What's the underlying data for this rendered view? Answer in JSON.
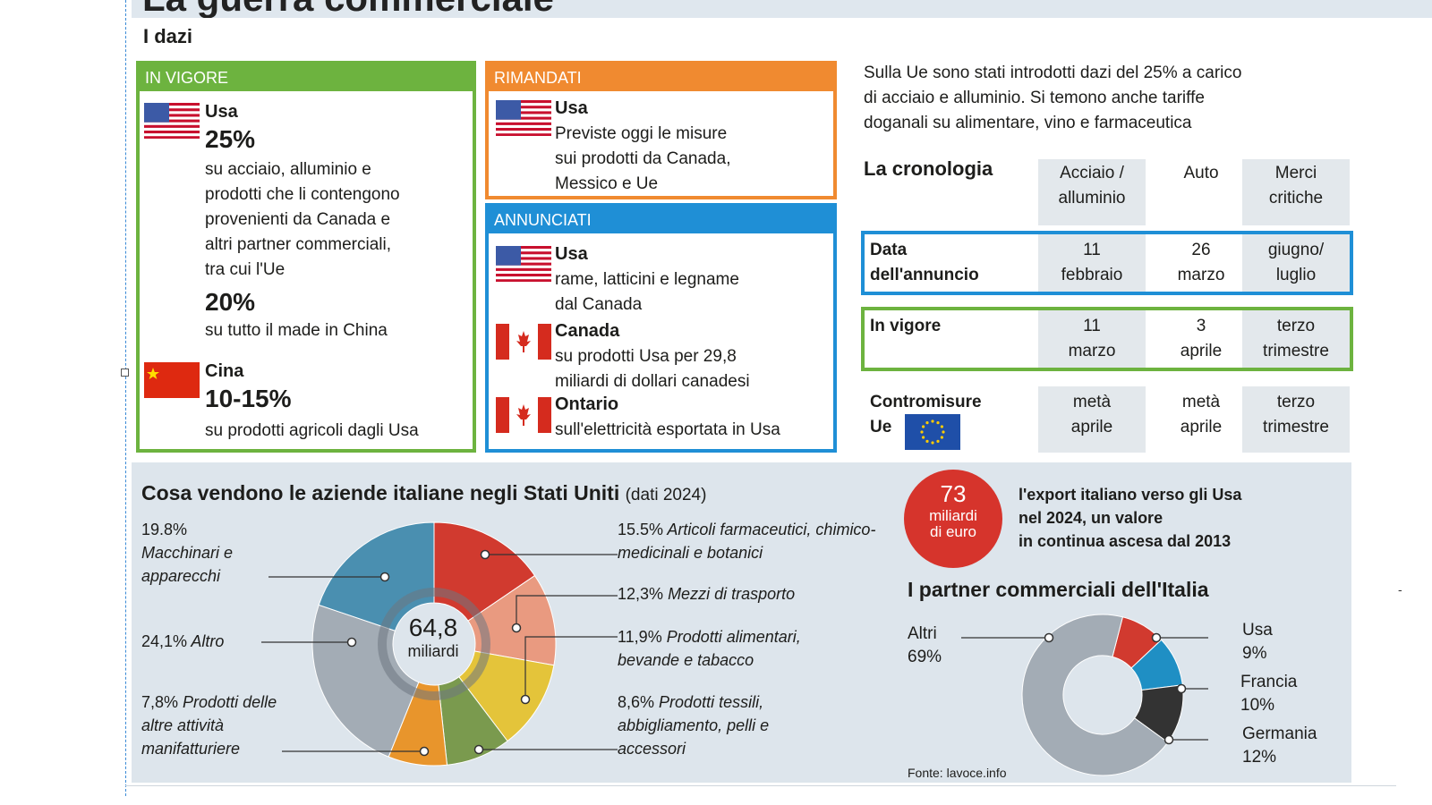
{
  "page": {
    "title": "La guerra commerciale",
    "section": "I dazi"
  },
  "colors": {
    "in_vigore": "#6db33f",
    "rimandati": "#f08a30",
    "annunciati": "#1f8fd6",
    "panel_bg": "#dde5ec",
    "badge": "#d6342c"
  },
  "in_vigore": {
    "header": "IN VIGORE",
    "usa_country": "Usa",
    "usa_rate1": "25%",
    "usa_text1": [
      "su acciaio, alluminio e",
      "prodotti che li contengono",
      "provenienti da Canada e",
      "altri partner commerciali,",
      "tra cui l'Ue"
    ],
    "usa_rate2": "20%",
    "usa_text2": "su tutto il made in China",
    "cina_country": "Cina",
    "cina_rate": "10-15%",
    "cina_text": "su prodotti agricoli dagli Usa"
  },
  "rimandati": {
    "header": "RIMANDATI",
    "country": "Usa",
    "text": [
      "Previste oggi le misure",
      "sui prodotti da Canada,",
      "Messico e Ue"
    ]
  },
  "annunciati": {
    "header": "ANNUNCIATI",
    "usa_country": "Usa",
    "usa_text": [
      "rame, latticini e legname",
      "dal Canada"
    ],
    "canada_country": "Canada",
    "canada_text": [
      "su prodotti Usa per 29,8",
      "miliardi di dollari canadesi"
    ],
    "ontario_country": "Ontario",
    "ontario_text": "sull'elettricità esportata in Usa"
  },
  "intro": [
    "Sulla Ue sono stati introdotti dazi del 25% a carico",
    "di acciaio e alluminio. Si temono anche tariffe",
    "doganali su alimentare, vino e farmaceutica"
  ],
  "cronologia": {
    "title": "La cronologia",
    "columns": [
      [
        "Acciaio /",
        "alluminio"
      ],
      [
        "Auto"
      ],
      [
        "Merci",
        "critiche"
      ]
    ],
    "rows": [
      {
        "label": [
          "Data",
          "dell'annuncio"
        ],
        "cells": [
          [
            "11",
            "febbraio"
          ],
          [
            "26",
            "marzo"
          ],
          [
            "giugno/",
            "luglio"
          ]
        ]
      },
      {
        "label": [
          "In vigore"
        ],
        "cells": [
          [
            "11",
            "marzo"
          ],
          [
            "3",
            "aprile"
          ],
          [
            "terzo",
            "trimestre"
          ]
        ]
      },
      {
        "label": [
          "Contromisure",
          "Ue"
        ],
        "cells": [
          [
            "metà",
            "aprile"
          ],
          [
            "metà",
            "aprile"
          ],
          [
            "terzo",
            "trimestre"
          ]
        ]
      }
    ]
  },
  "sales": {
    "title": "Cosa vendono le aziende italiane negli Stati Uniti",
    "note": "(dati 2024)",
    "center_value": "64,8",
    "center_unit": "miliardi"
  },
  "export_badge": {
    "value": "73",
    "unit_lines": [
      "miliardi",
      "di euro"
    ],
    "text": [
      "l'export italiano verso gli Usa",
      "nel 2024, un valore",
      "in continua ascesa dal 2013"
    ]
  },
  "partners": {
    "title": "I partner commerciali dell'Italia"
  },
  "source": "Fonte: lavoce.info",
  "chart_data": [
    {
      "type": "pie",
      "title": "Cosa vendono le aziende italiane negli Stati Uniti",
      "subtitle": "(dati 2024)",
      "center_label": "64,8 miliardi",
      "slices": [
        {
          "label": "Articoli farmaceutici, chimico-medicinali e botanici",
          "value": 15.5,
          "pct_text": "15.5%",
          "color": "#d13a2f"
        },
        {
          "label": "Mezzi di trasporto",
          "value": 12.3,
          "pct_text": "12,3%",
          "color": "#e99a80"
        },
        {
          "label": "Prodotti alimentari, bevande e tabacco",
          "value": 11.9,
          "pct_text": "11,9%",
          "color": "#e4c43a"
        },
        {
          "label": "Prodotti tessili, abbigliamento, pelli e accessori",
          "value": 8.6,
          "pct_text": "8,6%",
          "color": "#7a9a4e"
        },
        {
          "label": "Prodotti delle altre attività manifatturiere",
          "value": 7.8,
          "pct_text": "7,8%",
          "color": "#e8952c"
        },
        {
          "label": "Altro",
          "value": 24.1,
          "pct_text": "24,1%",
          "color": "#a3acb5"
        },
        {
          "label": "Macchinari e apparecchi",
          "value": 19.8,
          "pct_text": "19.8%",
          "color": "#4a8fb0"
        }
      ]
    },
    {
      "type": "pie",
      "title": "I partner commerciali dell'Italia",
      "slices": [
        {
          "label": "Usa",
          "value": 9,
          "pct_text": "9%",
          "color": "#d13a2f"
        },
        {
          "label": "Francia",
          "value": 10,
          "pct_text": "10%",
          "color": "#1f8fc4"
        },
        {
          "label": "Germania",
          "value": 12,
          "pct_text": "12%",
          "color": "#333333"
        },
        {
          "label": "Altri",
          "value": 69,
          "pct_text": "69%",
          "color": "#a3acb5"
        }
      ]
    }
  ]
}
